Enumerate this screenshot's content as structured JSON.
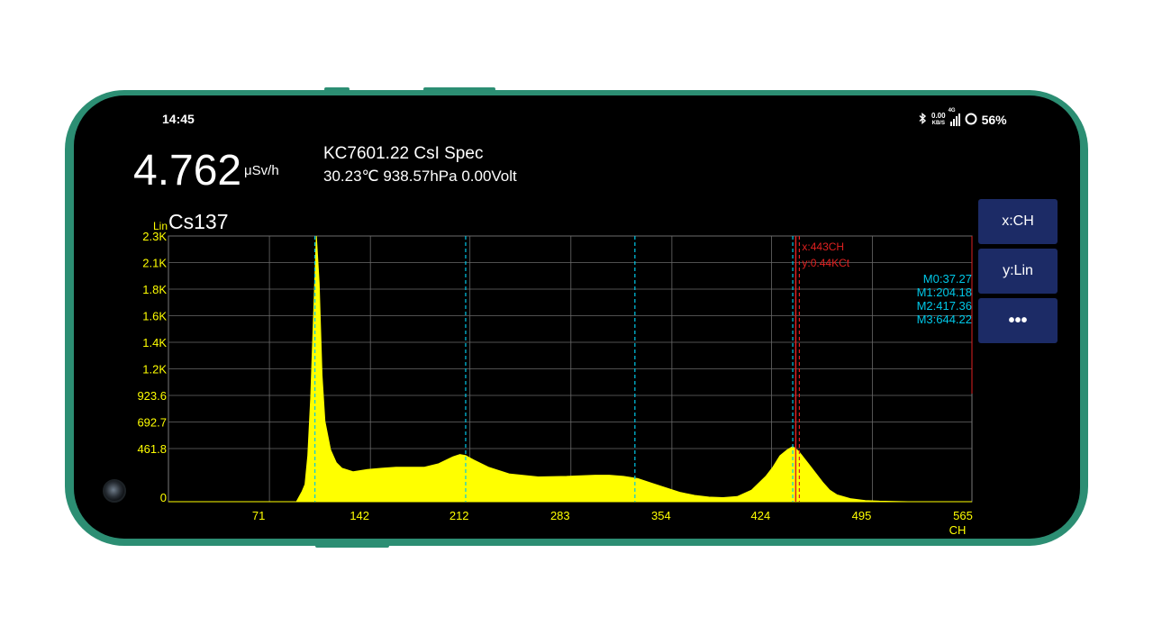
{
  "status_bar": {
    "time": "14:45",
    "net_speed": "0.00",
    "net_speed_unit": "KB/S",
    "signal": "4G",
    "battery": "56%"
  },
  "dose": {
    "value": "4.762",
    "unit": "μSv/h"
  },
  "device": {
    "name": "KC7601.22 CsI Spec",
    "env": "30.23℃ 938.57hPa 0.00Volt"
  },
  "scale_mode": "Lin",
  "isotope": "Cs137",
  "cursor": {
    "x_label": "x:443CH",
    "y_label": "y:0.44KCt",
    "channel": 443
  },
  "markers": [
    "M0:37.27",
    "M1:204.18",
    "M2:417.36",
    "M3:644.22"
  ],
  "buttons": {
    "x_axis": "x:CH",
    "y_axis": "y:Lin",
    "more": "•••"
  },
  "colors": {
    "spectrum_fill": "#ffff00",
    "marker_line": "#00c8e8",
    "cursor_line": "#e02020",
    "axis_text": "#ffff00",
    "button_bg": "#1c2b66",
    "phone_frame": "#2c8e73"
  },
  "chart_data": {
    "type": "area",
    "title": "Cs137",
    "xlabel": "CH",
    "ylabel": "",
    "x_ticks": [
      "71",
      "142",
      "212",
      "283",
      "354",
      "424",
      "495",
      "565"
    ],
    "x_tick_values": [
      71,
      142,
      212,
      283,
      354,
      424,
      495,
      565
    ],
    "y_ticks": [
      "0",
      "461.8",
      "692.7",
      "923.6",
      "1.2K",
      "1.4K",
      "1.6K",
      "1.8K",
      "2.1K",
      "2.3K"
    ],
    "y_tick_values": [
      0,
      461.8,
      692.7,
      923.6,
      1154.5,
      1385.4,
      1616.3,
      1847.2,
      2078.1,
      2309
    ],
    "xlim": [
      0,
      565
    ],
    "ylim": [
      0,
      2309
    ],
    "marker_channels": [
      103,
      209,
      328,
      439
    ],
    "series": [
      {
        "x": [
          0,
          90,
          94,
          96,
          98,
          100,
          102,
          104,
          106,
          108,
          110,
          114,
          118,
          122,
          130,
          140,
          150,
          160,
          170,
          180,
          190,
          200,
          205,
          209,
          215,
          225,
          240,
          260,
          280,
          300,
          310,
          320,
          330,
          340,
          350,
          360,
          370,
          380,
          390,
          400,
          410,
          420,
          425,
          430,
          435,
          439,
          443,
          450,
          455,
          460,
          465,
          470,
          480,
          490,
          500,
          520,
          565
        ],
        "values": [
          0,
          0,
          90,
          150,
          400,
          900,
          1600,
          2309,
          1900,
          1100,
          700,
          450,
          340,
          290,
          260,
          280,
          290,
          300,
          300,
          300,
          330,
          390,
          410,
          400,
          360,
          300,
          240,
          215,
          220,
          230,
          230,
          220,
          200,
          160,
          120,
          80,
          55,
          40,
          35,
          45,
          100,
          220,
          300,
          400,
          450,
          480,
          440,
          330,
          250,
          170,
          100,
          60,
          25,
          10,
          5,
          0,
          0
        ]
      }
    ],
    "grid": true
  }
}
